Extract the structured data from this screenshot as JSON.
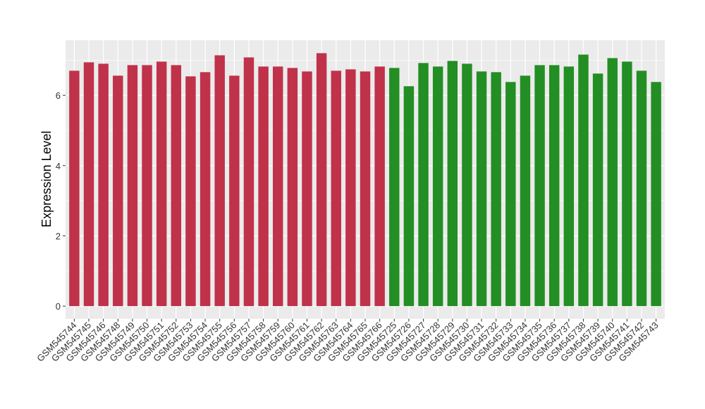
{
  "chart_data": {
    "type": "bar",
    "y_label": "Expression Level",
    "categories": [
      "GSM545744",
      "GSM545745",
      "GSM545746",
      "GSM545748",
      "GSM545749",
      "GSM545750",
      "GSM545751",
      "GSM545752",
      "GSM545753",
      "GSM545754",
      "GSM545755",
      "GSM545756",
      "GSM545757",
      "GSM545758",
      "GSM545759",
      "GSM545760",
      "GSM545761",
      "GSM545762",
      "GSM545763",
      "GSM545764",
      "GSM545765",
      "GSM545766",
      "GSM545725",
      "GSM545726",
      "GSM545727",
      "GSM545728",
      "GSM545729",
      "GSM545730",
      "GSM545731",
      "GSM545732",
      "GSM545733",
      "GSM545734",
      "GSM545735",
      "GSM545736",
      "GSM545737",
      "GSM545738",
      "GSM545739",
      "GSM545740",
      "GSM545741",
      "GSM545742",
      "GSM545743"
    ],
    "values": [
      6.7,
      6.94,
      6.9,
      6.56,
      6.86,
      6.86,
      6.96,
      6.86,
      6.54,
      6.66,
      7.14,
      6.56,
      7.08,
      6.82,
      6.82,
      6.78,
      6.68,
      7.2,
      6.7,
      6.74,
      6.68,
      6.82,
      6.78,
      6.26,
      6.92,
      6.82,
      6.98,
      6.9,
      6.68,
      6.66,
      6.38,
      6.56,
      6.86,
      6.86,
      6.82,
      7.16,
      6.62,
      7.06,
      6.96,
      6.7,
      6.38
    ],
    "colors": [
      "#c0314a",
      "#c0314a",
      "#c0314a",
      "#c0314a",
      "#c0314a",
      "#c0314a",
      "#c0314a",
      "#c0314a",
      "#c0314a",
      "#c0314a",
      "#c0314a",
      "#c0314a",
      "#c0314a",
      "#c0314a",
      "#c0314a",
      "#c0314a",
      "#c0314a",
      "#c0314a",
      "#c0314a",
      "#c0314a",
      "#c0314a",
      "#c0314a",
      "#238e23",
      "#238e23",
      "#238e23",
      "#238e23",
      "#238e23",
      "#238e23",
      "#238e23",
      "#238e23",
      "#238e23",
      "#238e23",
      "#238e23",
      "#238e23",
      "#238e23",
      "#238e23",
      "#238e23",
      "#238e23",
      "#238e23",
      "#238e23",
      "#238e23"
    ],
    "ylim": [
      -0.36,
      7.57
    ],
    "yticks": [
      0,
      2,
      4,
      6
    ],
    "grid": true
  }
}
